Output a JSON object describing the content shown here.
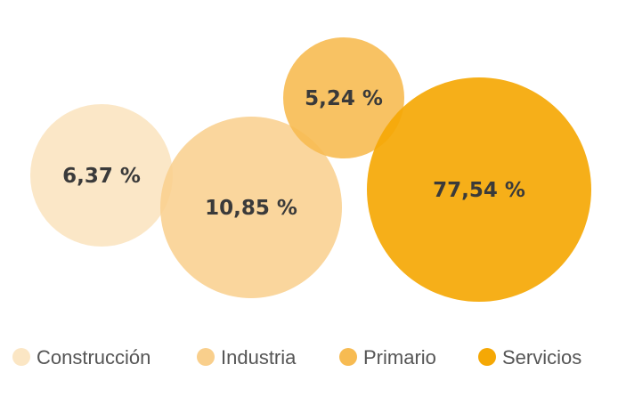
{
  "chart_data": {
    "type": "bubble",
    "categories": [
      "Construcción",
      "Industria",
      "Primario",
      "Servicios"
    ],
    "values": [
      6.37,
      10.85,
      5.24,
      77.54
    ],
    "labels": [
      "6,37 %",
      "10,85 %",
      "5,24 %",
      "77,54 %"
    ],
    "colors": [
      "#fbe6c4",
      "#f9cf8c",
      "#f7bb52",
      "#f5a805"
    ],
    "legend": {
      "position": "bottom",
      "entries": [
        "Construcción",
        "Industria",
        "Primario",
        "Servicios"
      ]
    },
    "title": "",
    "xlabel": "",
    "ylabel": "",
    "grid": false
  }
}
